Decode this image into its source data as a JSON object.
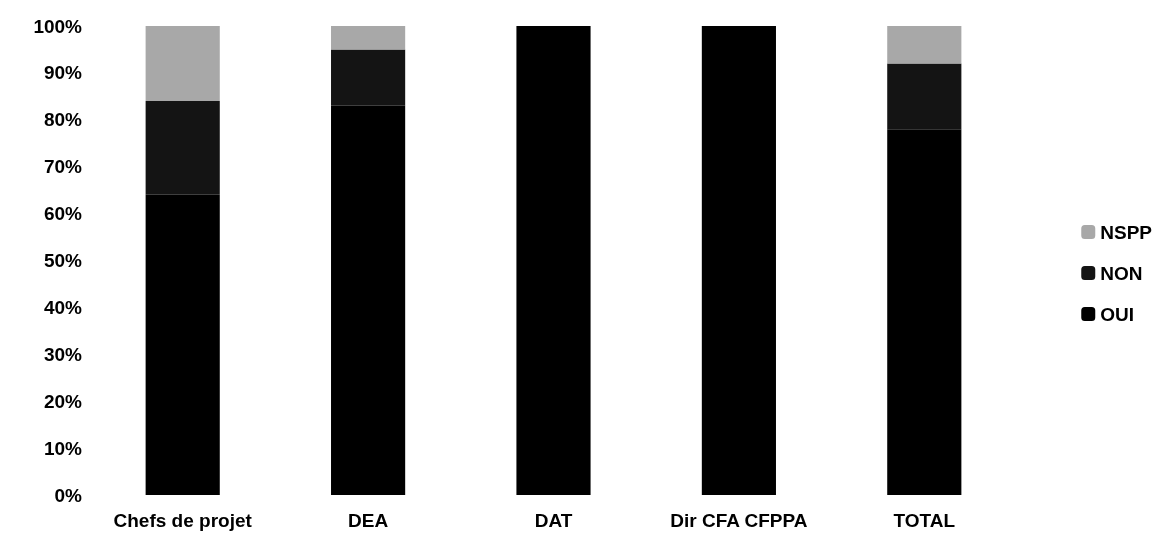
{
  "chart_data": {
    "type": "bar",
    "stacked": true,
    "categories": [
      "Chefs de projet",
      "DEA",
      "DAT",
      "Dir CFA CFPPA",
      "TOTAL"
    ],
    "series": [
      {
        "name": "OUI",
        "color": "#000000",
        "values": [
          64,
          83,
          100,
          100,
          78
        ]
      },
      {
        "name": "NON",
        "color": "#141414",
        "values": [
          20,
          12,
          0,
          0,
          14
        ]
      },
      {
        "name": "NSPP",
        "color": "#a8a8a8",
        "values": [
          16,
          5,
          0,
          0,
          8
        ]
      }
    ],
    "ylim": [
      0,
      100
    ],
    "yticks": [
      {
        "value": 0,
        "label": "0%"
      },
      {
        "value": 10,
        "label": "10%"
      },
      {
        "value": 20,
        "label": "20%"
      },
      {
        "value": 30,
        "label": "30%"
      },
      {
        "value": 40,
        "label": "40%"
      },
      {
        "value": 50,
        "label": "50%"
      },
      {
        "value": 60,
        "label": "60%"
      },
      {
        "value": 70,
        "label": "70%"
      },
      {
        "value": 80,
        "label": "80%"
      },
      {
        "value": 90,
        "label": "90%"
      },
      {
        "value": 100,
        "label": "100%"
      }
    ],
    "grid": false,
    "legend": "right"
  }
}
